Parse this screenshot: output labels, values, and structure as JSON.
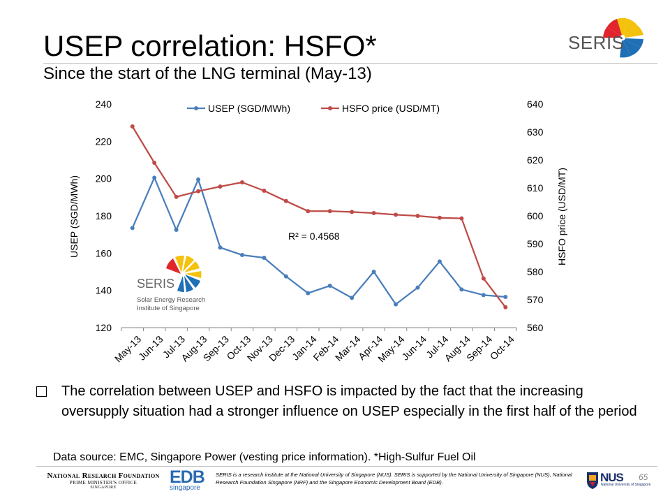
{
  "header": {
    "title": "USEP correlation: HSFO*",
    "subtitle": "Since the start of the LNG terminal (May-13)",
    "logo_text": "SERIS"
  },
  "chart_data": {
    "type": "line",
    "categories": [
      "May-13",
      "Jun-13",
      "Jul-13",
      "Aug-13",
      "Sep-13",
      "Oct-13",
      "Nov-13",
      "Dec-13",
      "Jan-14",
      "Feb-14",
      "Mar-14",
      "Apr-14",
      "May-14",
      "Jun-14",
      "Jul-14",
      "Aug-14",
      "Sep-14",
      "Oct-14"
    ],
    "series": [
      {
        "name": "USEP (SGD/MWh)",
        "axis": "left",
        "color": "#4a7ebb",
        "values": [
          173.5,
          200.5,
          172.5,
          199.5,
          163,
          159,
          157.5,
          147.5,
          138.5,
          142.5,
          136,
          150,
          132.5,
          141.5,
          155.5,
          140.5,
          137.5,
          136.5
        ]
      },
      {
        "name": "HSFO price (USD/MT)",
        "axis": "right",
        "color": "#be4b48",
        "values": [
          632,
          619,
          606.8,
          608.8,
          610.5,
          612,
          609,
          605.3,
          601.7,
          601.7,
          601.4,
          601,
          600.4,
          600,
          599.3,
          599.1,
          577.6,
          567.3
        ]
      }
    ],
    "ylabel": "USEP (SGD/MWh)",
    "y2label": "HSFO price (USD/MT)",
    "ylim": [
      120,
      240
    ],
    "y2lim": [
      560,
      640
    ],
    "yticks": [
      120,
      140,
      160,
      180,
      200,
      220,
      240
    ],
    "y2ticks": [
      560,
      570,
      580,
      590,
      600,
      610,
      620,
      630,
      640
    ],
    "legend": "top",
    "annotation": "R² = 0.4568",
    "grid": false,
    "inset_logo": {
      "name": "SERIS",
      "line1": "Solar Energy Research",
      "line2": "Institute of Singapore"
    }
  },
  "bullet": "The correlation between USEP and HSFO is impacted by the fact that the increasing oversupply situation had a stronger influence on USEP especially in the first half of the period",
  "source": "Data source: EMC, Singapore Power (vesting price information). *High-Sulfur Fuel Oil",
  "footer": {
    "nrf_line1": "National Research Foundation",
    "nrf_line2": "PRIME MINISTER'S OFFICE",
    "nrf_line3": "SINGAPORE",
    "edb": "EDB",
    "edb_sub": "singapore",
    "disclaimer": "SERIS is a research institute at the National University of Singapore (NUS). SERIS is supported by the National University of Singapore (NUS), National Research Foundation Singapore (NRF) and the Singapore Economic Development Board (EDB).",
    "nus": "NUS",
    "nus_sub": "National University of Singapore",
    "page": "65"
  }
}
